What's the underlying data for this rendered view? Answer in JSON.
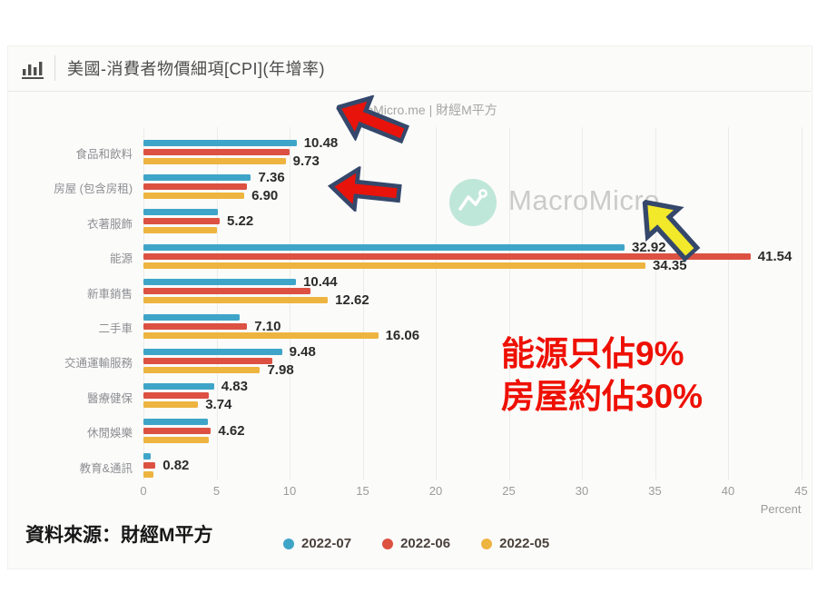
{
  "header": {
    "title": "美國-消費者物價細項[CPI](年增率)"
  },
  "top_watermark": "MacroMicro.me | 財經M平方",
  "logo_watermark": "MacroMicro",
  "chart_data": {
    "type": "bar",
    "orientation": "horizontal",
    "title": "美國-消費者物價細項[CPI](年增率)",
    "xlabel": "Percent",
    "xlim": [
      0,
      45
    ],
    "x_ticks": [
      0,
      5,
      10,
      15,
      20,
      25,
      30,
      35,
      40,
      45
    ],
    "grid": true,
    "legend_position": "bottom",
    "categories": [
      "食品和飲料",
      "房屋 (包含房租)",
      "衣著服飾",
      "能源",
      "新車銷售",
      "二手車",
      "交通運輸服務",
      "醫療健保",
      "休閒娛樂",
      "教育&通訊"
    ],
    "series": [
      {
        "name": "2022-07",
        "color": "#3fa5c8",
        "values": [
          10.48,
          7.36,
          5.1,
          32.92,
          10.44,
          6.6,
          9.48,
          4.83,
          4.4,
          0.5
        ],
        "data_labels": [
          "10.48",
          "7.36",
          null,
          "32.92",
          "10.44",
          null,
          "9.48",
          "4.83",
          null,
          null
        ]
      },
      {
        "name": "2022-06",
        "color": "#dc5142",
        "values": [
          10.0,
          7.1,
          5.22,
          41.54,
          11.4,
          7.1,
          8.8,
          4.5,
          4.62,
          0.82
        ],
        "data_labels": [
          null,
          null,
          "5.22",
          "41.54",
          null,
          "7.10",
          null,
          null,
          "4.62",
          "0.82"
        ]
      },
      {
        "name": "2022-05",
        "color": "#eeb440",
        "values": [
          9.73,
          6.9,
          5.0,
          34.35,
          12.62,
          16.06,
          7.98,
          3.74,
          4.5,
          0.7
        ],
        "data_labels": [
          "9.73",
          "6.90",
          null,
          "34.35",
          "12.62",
          "16.06",
          "7.98",
          "3.74",
          null,
          null
        ]
      }
    ]
  },
  "annotations": {
    "note_line1": "能源只佔9%",
    "note_line2": "房屋約佔30%"
  },
  "source_text": "資料來源：財經M平方",
  "colors": {
    "bar_blue": "#3fa5c8",
    "bar_red": "#dc5142",
    "bar_yellow": "#eeb440",
    "note_red": "#ee1002",
    "arrow_red": "#e8130a",
    "arrow_outline": "#35486b",
    "arrow_yellow": "#f2e92b",
    "logo_mint": "#bfe7d9"
  }
}
